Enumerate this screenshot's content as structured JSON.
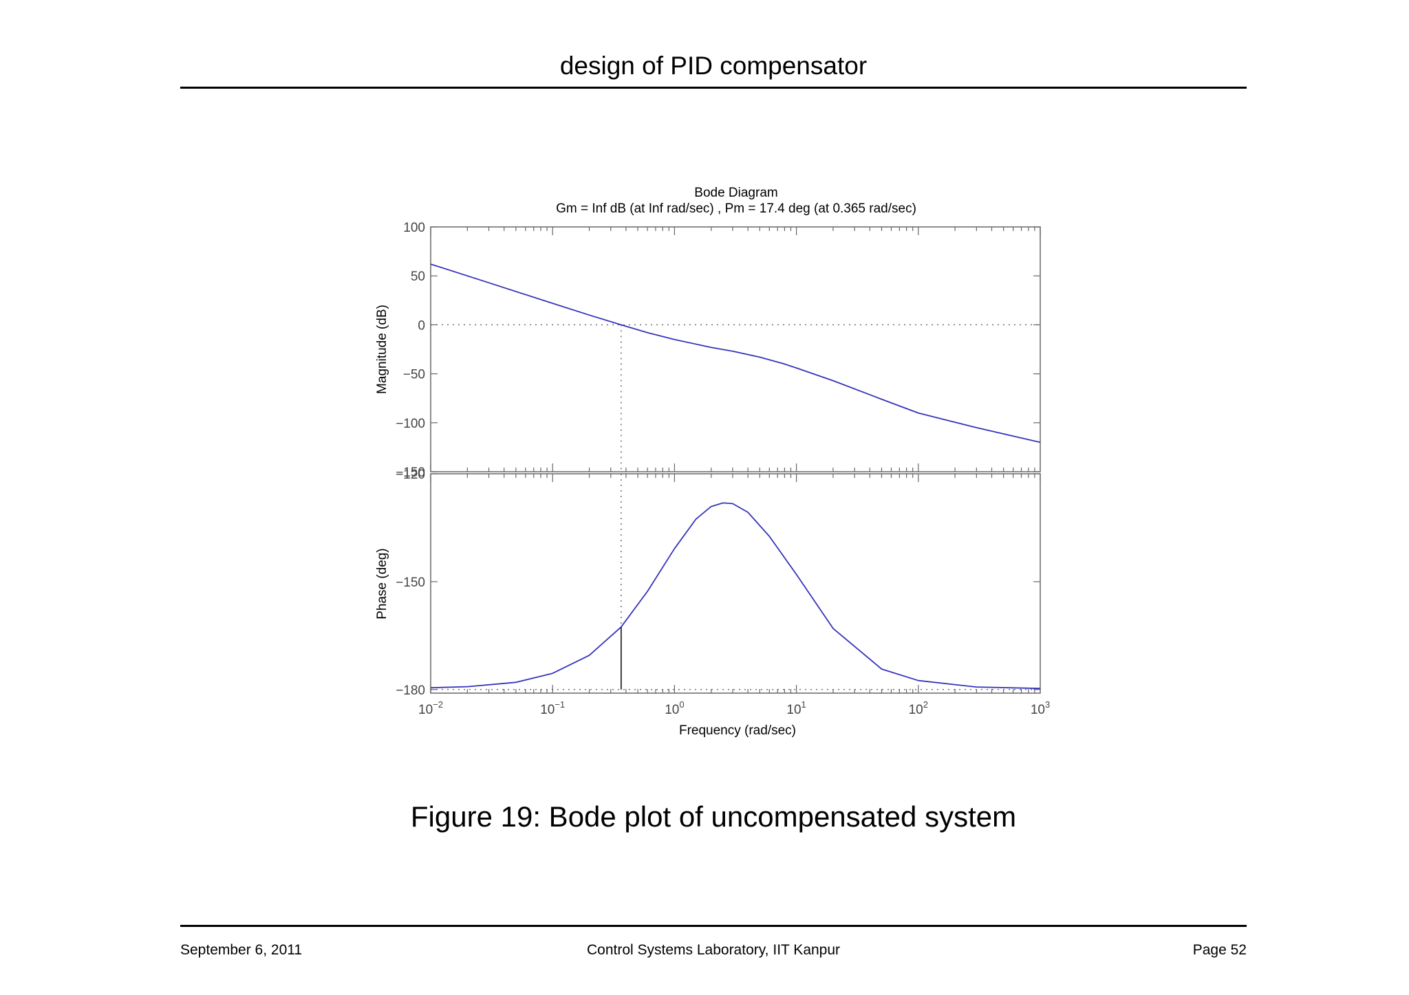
{
  "page": {
    "header": "design of PID compensator",
    "caption": "Figure 19: Bode plot of uncompensated system",
    "footer": {
      "date": "September 6, 2011",
      "lab": "Control Systems Laboratory, IIT Kanpur",
      "page": "Page 52"
    }
  },
  "chart_data": {
    "type": "line",
    "title": "Bode Diagram",
    "subtitle": "Gm = Inf dB (at Inf rad/sec) ,  Pm = 17.4 deg (at 0.365 rad/sec)",
    "xlabel": "Frequency  (rad/sec)",
    "xscale": "log",
    "xlim": [
      0.01,
      1000
    ],
    "x_tick_labels": [
      {
        "base": "10",
        "exp": "−2"
      },
      {
        "base": "10",
        "exp": "−1"
      },
      {
        "base": "10",
        "exp": "0"
      },
      {
        "base": "10",
        "exp": "1"
      },
      {
        "base": "10",
        "exp": "2"
      },
      {
        "base": "10",
        "exp": "3"
      }
    ],
    "grid": false,
    "crossover_frequency": 0.365,
    "magnitude": {
      "ylabel": "Magnitude (dB)",
      "ylim": [
        -150,
        100
      ],
      "y_ticks": [
        100,
        50,
        0,
        -50,
        -100,
        -150
      ],
      "y_tick_labels": [
        "100",
        "50",
        "0",
        "−50",
        "−100",
        "−150"
      ],
      "reference_level": 0,
      "series": {
        "color": "#3333bb",
        "x": [
          0.01,
          0.03,
          0.1,
          0.2,
          0.365,
          0.6,
          1,
          2,
          3,
          5,
          8,
          10,
          20,
          50,
          100,
          300,
          1000
        ],
        "y": [
          62,
          43,
          22,
          10,
          0,
          -8,
          -15,
          -23,
          -27,
          -33,
          -40,
          -44,
          -57,
          -76,
          -90,
          -105,
          -120
        ]
      }
    },
    "phase": {
      "ylabel": "Phase (deg)",
      "ylim": [
        -181,
        -120
      ],
      "y_ticks": [
        -120,
        -150,
        -180
      ],
      "y_tick_labels": [
        "−120",
        "−150",
        "−180"
      ],
      "reference_level": -180,
      "series": {
        "color": "#3333bb",
        "x": [
          0.01,
          0.02,
          0.05,
          0.1,
          0.2,
          0.365,
          0.6,
          1,
          1.5,
          2,
          2.5,
          3,
          4,
          6,
          10,
          20,
          50,
          100,
          300,
          1000
        ],
        "y": [
          -179.5,
          -179.2,
          -178,
          -175.5,
          -170.5,
          -162.6,
          -152.7,
          -140.8,
          -132.6,
          -129.1,
          -128.1,
          -128.3,
          -130.7,
          -137.4,
          -148,
          -163,
          -174.3,
          -177.5,
          -179.3,
          -179.7
        ]
      }
    }
  }
}
